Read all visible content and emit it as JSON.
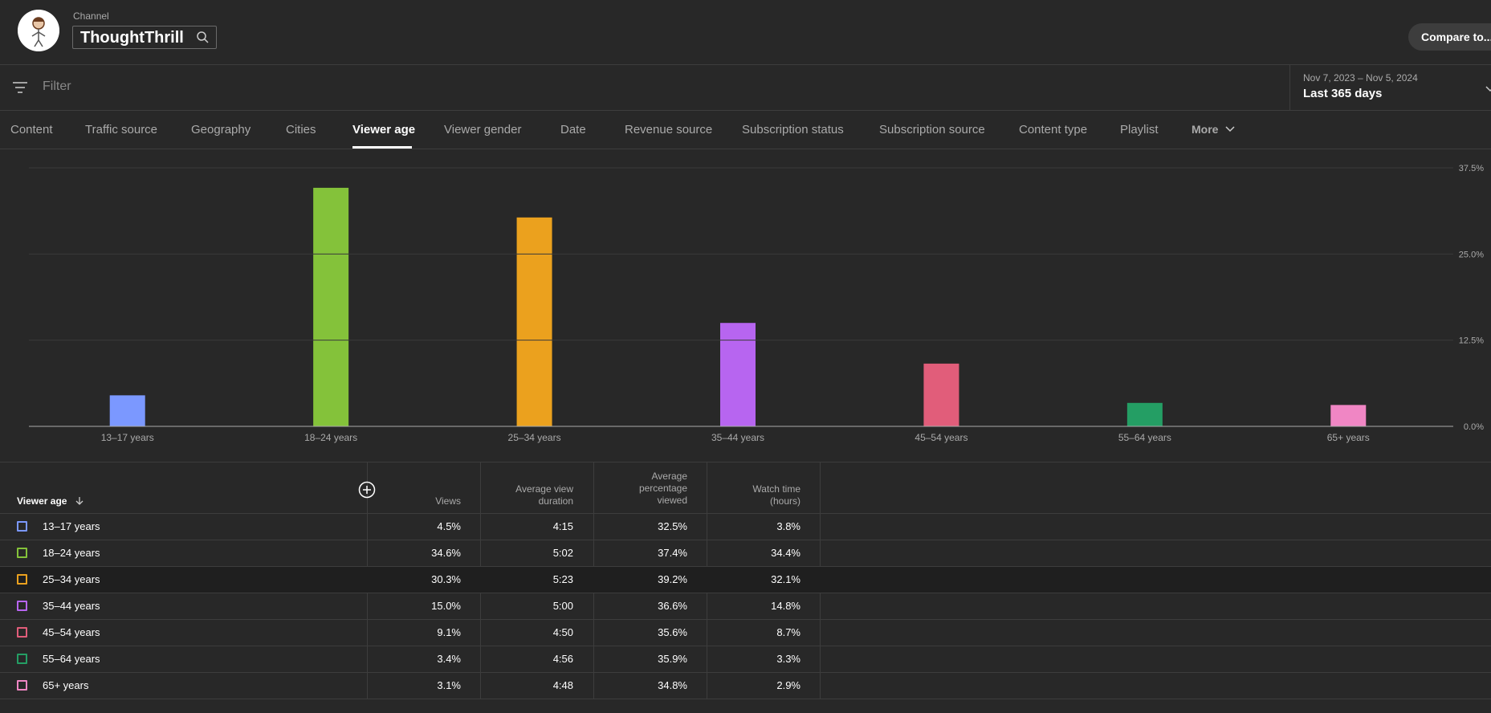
{
  "header": {
    "channel_label": "Channel",
    "channel_name": "ThoughtThrill",
    "compare_label": "Compare to..."
  },
  "filter": {
    "placeholder": "Filter",
    "date_range": "Nov 7, 2023 – Nov 5, 2024",
    "date_label": "Last 365 days"
  },
  "tabs": [
    {
      "label": "Content"
    },
    {
      "label": "Traffic source"
    },
    {
      "label": "Geography"
    },
    {
      "label": "Cities"
    },
    {
      "label": "Viewer age"
    },
    {
      "label": "Viewer gender"
    },
    {
      "label": "Date"
    },
    {
      "label": "Revenue source"
    },
    {
      "label": "Subscription status"
    },
    {
      "label": "Subscription source"
    },
    {
      "label": "Content type"
    },
    {
      "label": "Playlist"
    },
    {
      "label": "More"
    }
  ],
  "active_tab": "Viewer age",
  "chart_data": {
    "type": "bar",
    "categories": [
      "13–17 years",
      "18–24 years",
      "25–34 years",
      "35–44 years",
      "45–54 years",
      "55–64 years",
      "65+ years"
    ],
    "values": [
      4.5,
      34.6,
      30.3,
      15.0,
      9.1,
      3.4,
      3.1
    ],
    "colors": [
      "#7b98ff",
      "#84c23a",
      "#eba11e",
      "#b765f0",
      "#e15d7a",
      "#249e64",
      "#f086c4"
    ],
    "ylim": [
      0,
      37.5
    ],
    "yticks": [
      "37.5%",
      "25.0%",
      "12.5%",
      "0.0%"
    ],
    "ytick_values": [
      37.5,
      25,
      12.5,
      0
    ],
    "grid": true
  },
  "table": {
    "headers": {
      "viewer_age": "Viewer age",
      "views": "Views",
      "avg_view_duration": [
        "Average view",
        "duration"
      ],
      "avg_pct_viewed": [
        "Average",
        "percentage",
        "viewed"
      ],
      "watch_time": [
        "Watch time",
        "(hours)"
      ]
    },
    "rows": [
      {
        "age": "13–17 years",
        "views": "4.5%",
        "avd": "4:15",
        "apv": "32.5%",
        "wt": "3.8%",
        "color": "#7b98ff"
      },
      {
        "age": "18–24 years",
        "views": "34.6%",
        "avd": "5:02",
        "apv": "37.4%",
        "wt": "34.4%",
        "color": "#84c23a"
      },
      {
        "age": "25–34 years",
        "views": "30.3%",
        "avd": "5:23",
        "apv": "39.2%",
        "wt": "32.1%",
        "color": "#eba11e"
      },
      {
        "age": "35–44 years",
        "views": "15.0%",
        "avd": "5:00",
        "apv": "36.6%",
        "wt": "14.8%",
        "color": "#b765f0"
      },
      {
        "age": "45–54 years",
        "views": "9.1%",
        "avd": "4:50",
        "apv": "35.6%",
        "wt": "8.7%",
        "color": "#e15d7a"
      },
      {
        "age": "55–64 years",
        "views": "3.4%",
        "avd": "4:56",
        "apv": "35.9%",
        "wt": "3.3%",
        "color": "#249e64"
      },
      {
        "age": "65+ years",
        "views": "3.1%",
        "avd": "4:48",
        "apv": "34.8%",
        "wt": "2.9%",
        "color": "#f086c4"
      }
    ]
  }
}
